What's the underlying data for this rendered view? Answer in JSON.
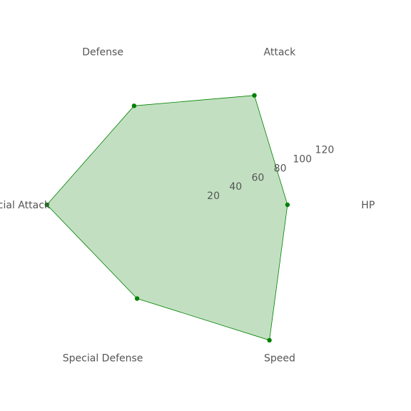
{
  "chart_data": {
    "type": "radar",
    "categories": [
      "HP",
      "Attack",
      "Defense",
      "Special Attack",
      "Special Defense",
      "Speed"
    ],
    "values": [
      80,
      105,
      95,
      120,
      90,
      130
    ],
    "r_range": [
      0,
      140
    ],
    "r_ticks": [
      20,
      40,
      60,
      80,
      100,
      120
    ],
    "grid": false,
    "colors": {
      "fill": "#c2e0c1",
      "line": "#008000",
      "marker": "#008000",
      "text": "#555555"
    }
  }
}
